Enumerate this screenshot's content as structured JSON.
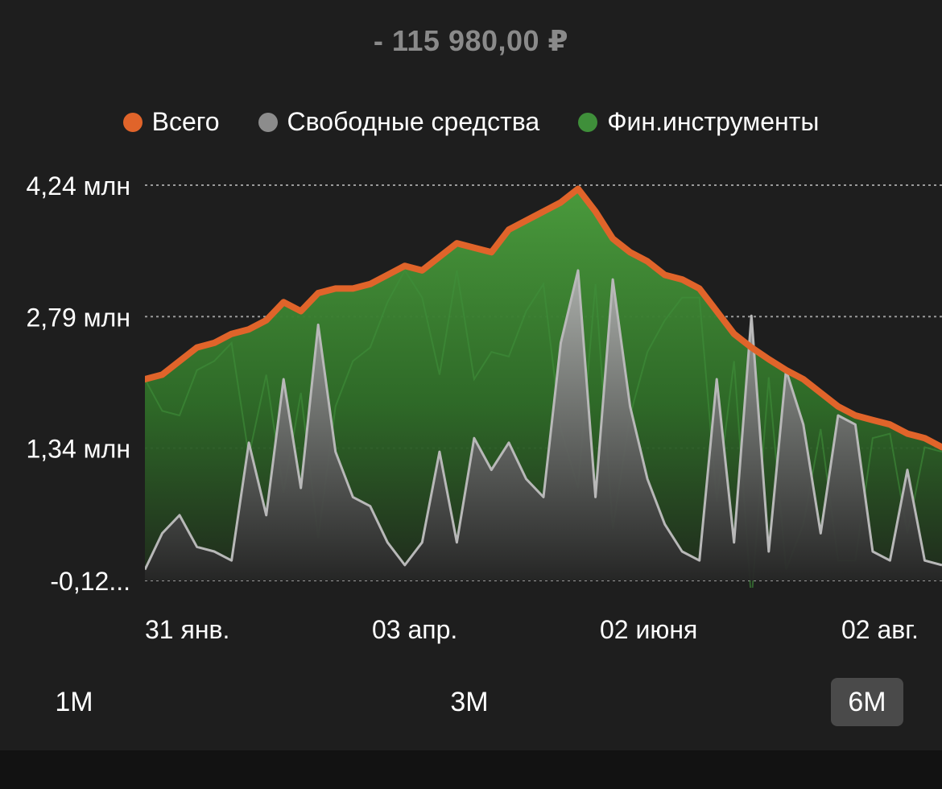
{
  "header": {
    "delta_value": "- 115 980,00  ₽"
  },
  "legend": [
    {
      "label": "Всего",
      "color": "#e0642a"
    },
    {
      "label": "Свободные средства",
      "color": "#8c8c8c"
    },
    {
      "label": "Фин.инструменты",
      "color": "#3f8f3a"
    }
  ],
  "range_buttons": [
    {
      "label": "1M",
      "active": false
    },
    {
      "label": "3M",
      "active": false
    },
    {
      "label": "6M",
      "active": true
    }
  ],
  "chart_data": {
    "type": "area",
    "y_tick_labels": [
      "4,24 млн",
      "2,79 млн",
      "1,34 млн",
      "-0,12..."
    ],
    "y_tick_values": [
      4.24,
      2.79,
      1.34,
      -0.12
    ],
    "ylim": [
      -0.12,
      4.24
    ],
    "x_tick_labels": [
      "31 янв.",
      "03 апр.",
      "02 июня",
      "02 авг."
    ],
    "grid": true,
    "legend_position": "top-center",
    "series": [
      {
        "name": "Всего",
        "color": "#e0642a",
        "values": [
          2.1,
          2.15,
          2.3,
          2.45,
          2.5,
          2.6,
          2.65,
          2.75,
          2.95,
          2.85,
          3.05,
          3.1,
          3.1,
          3.15,
          3.25,
          3.35,
          3.3,
          3.45,
          3.6,
          3.55,
          3.5,
          3.75,
          3.85,
          3.95,
          4.05,
          4.2,
          3.95,
          3.65,
          3.5,
          3.4,
          3.25,
          3.2,
          3.1,
          2.85,
          2.6,
          2.45,
          2.32,
          2.2,
          2.1,
          1.95,
          1.8,
          1.7,
          1.65,
          1.6,
          1.5,
          1.45,
          1.35
        ]
      },
      {
        "name": "Свободные средства",
        "color": "#9a9a9a",
        "values": [
          0.0,
          0.4,
          0.6,
          0.25,
          0.2,
          0.1,
          1.4,
          0.6,
          2.1,
          0.9,
          2.7,
          1.3,
          0.8,
          0.7,
          0.3,
          0.05,
          0.3,
          1.3,
          0.3,
          1.45,
          1.1,
          1.4,
          1.0,
          0.8,
          2.5,
          3.3,
          0.8,
          3.2,
          1.8,
          1.0,
          0.5,
          0.2,
          0.1,
          2.1,
          0.3,
          2.8,
          0.2,
          2.2,
          1.6,
          0.4,
          1.7,
          1.6,
          0.2,
          0.1,
          1.1,
          0.1,
          0.05
        ]
      },
      {
        "name": "Фин.инструменты",
        "color": "#3f8f3a",
        "values": [
          2.1,
          1.75,
          1.7,
          2.2,
          2.3,
          2.5,
          1.25,
          2.15,
          0.85,
          1.95,
          0.35,
          1.8,
          2.3,
          2.45,
          2.95,
          3.3,
          3.0,
          2.15,
          3.3,
          2.1,
          2.4,
          2.35,
          2.85,
          3.15,
          1.55,
          0.9,
          3.15,
          0.45,
          1.7,
          2.4,
          2.75,
          3.0,
          3.0,
          0.75,
          2.3,
          -0.35,
          2.12,
          0.0,
          0.5,
          1.55,
          0.1,
          0.1,
          1.45,
          1.5,
          0.4,
          1.35,
          1.3
        ]
      }
    ]
  }
}
